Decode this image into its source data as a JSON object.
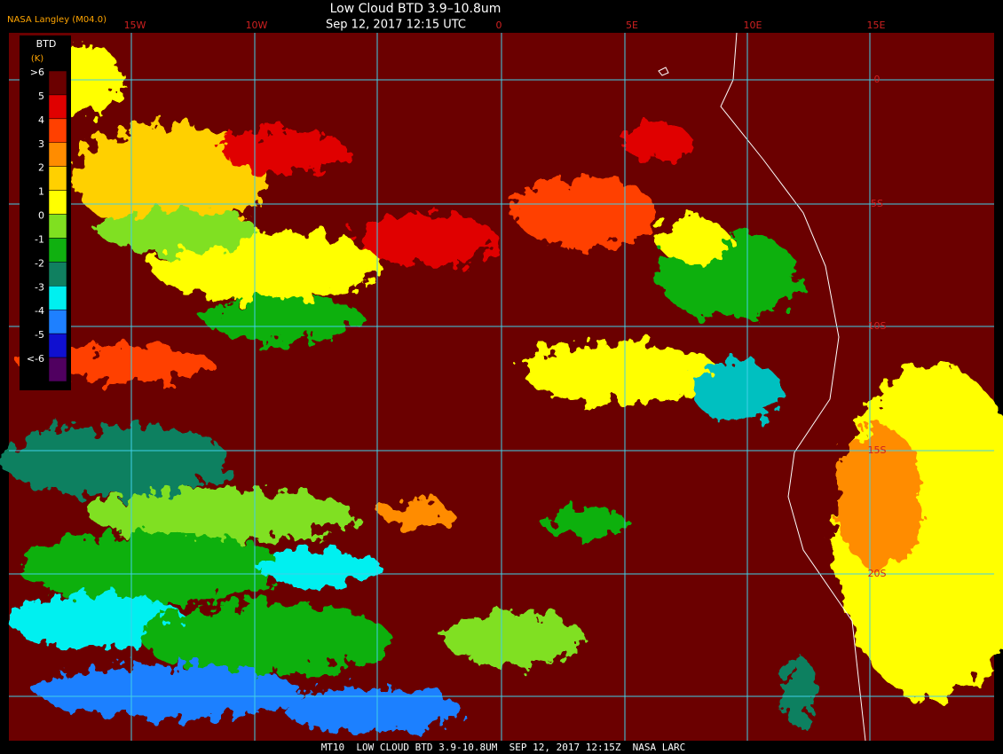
{
  "header": {
    "source": "NASA Langley (M04.0)",
    "title": "Low Cloud BTD 3.9–10.8um",
    "time": "Sep 12, 2017 12:15 UTC"
  },
  "legend": {
    "title": "BTD",
    "unit": "(K)",
    "items": [
      {
        "label": ">6",
        "color": "#6b0000"
      },
      {
        "label": "5",
        "color": "#e00000"
      },
      {
        "label": "4",
        "color": "#ff4000"
      },
      {
        "label": "3",
        "color": "#ff8c00"
      },
      {
        "label": "2",
        "color": "#ffd000"
      },
      {
        "label": "1",
        "color": "#ffff00"
      },
      {
        "label": "0",
        "color": "#80e020"
      },
      {
        "label": "-1",
        "color": "#10b010"
      },
      {
        "label": "-2",
        "color": "#108060"
      },
      {
        "label": "-3",
        "color": "#00f0f0"
      },
      {
        "label": "-4",
        "color": "#1e80ff"
      },
      {
        "label": "-5",
        "color": "#1010d0"
      },
      {
        "label": "<-6",
        "color": "#500060"
      }
    ]
  },
  "grid": {
    "longitudes": [
      "15W",
      "10W",
      "0",
      "5E",
      "10E",
      "15E"
    ],
    "latitudes": [
      "0",
      "5S",
      "10S",
      "15S",
      "20S"
    ]
  },
  "footer": "MT10  LOW CLOUD BTD 3.9-10.8UM  SEP 12, 2017 12:15Z  NASA LARC"
}
